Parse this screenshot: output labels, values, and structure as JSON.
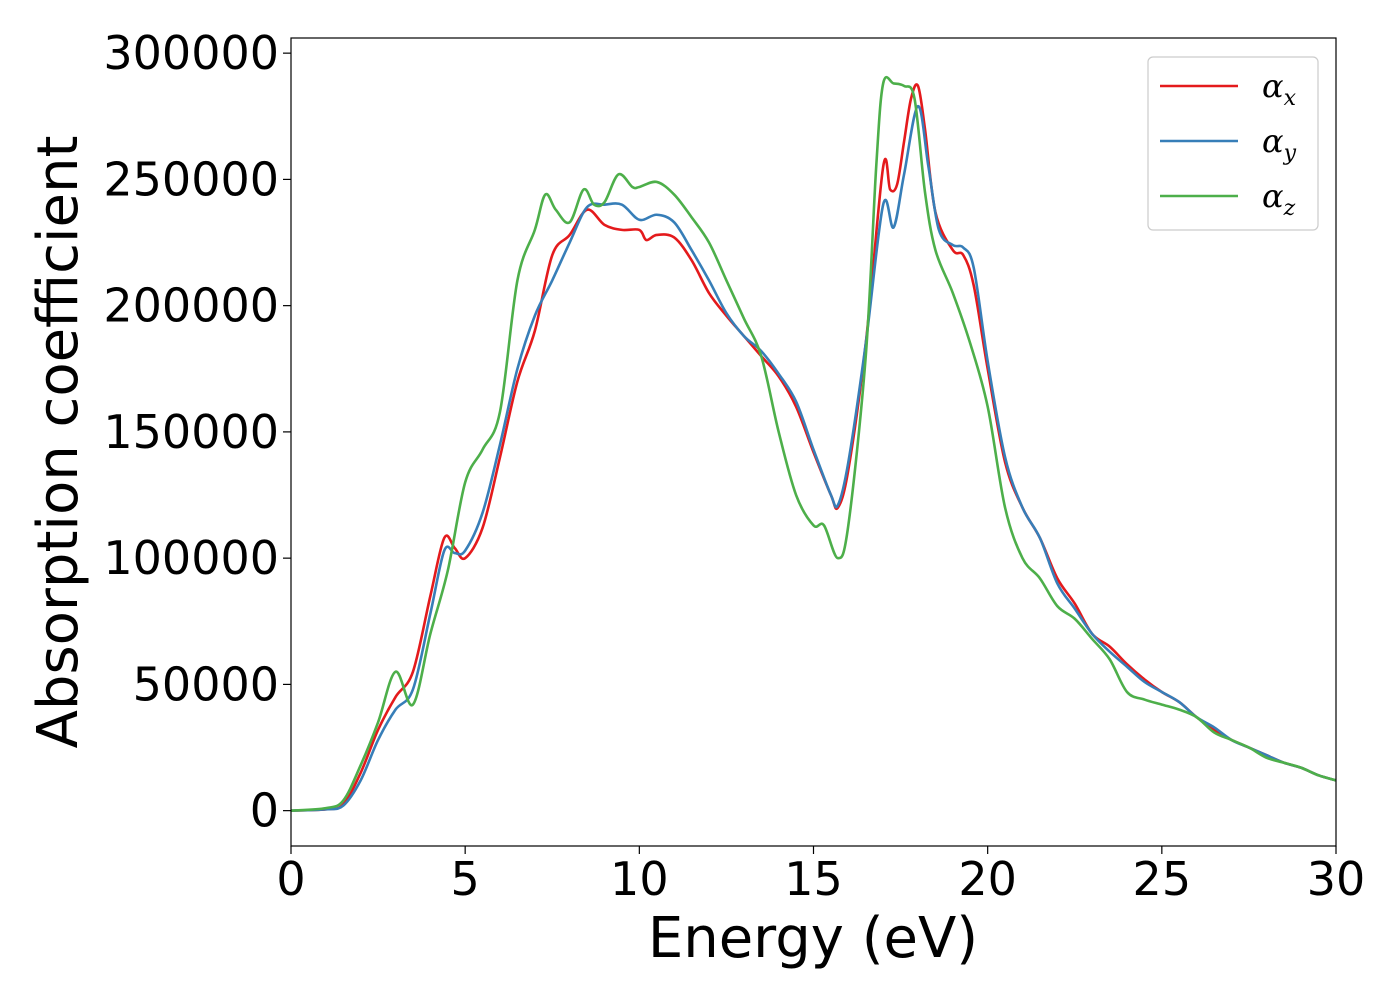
{
  "chart_data": {
    "type": "line",
    "xlabel": "Energy (eV)",
    "ylabel": "Absorption coefficient",
    "xlim": [
      0,
      30
    ],
    "ylim": [
      -14000,
      306000
    ],
    "xticks": [
      0,
      5,
      10,
      15,
      20,
      25,
      30
    ],
    "xtick_labels": [
      "0",
      "5",
      "10",
      "15",
      "20",
      "25",
      "30"
    ],
    "yticks": [
      0,
      50000,
      100000,
      150000,
      200000,
      250000,
      300000
    ],
    "ytick_labels": [
      "0",
      "50000",
      "100000",
      "150000",
      "200000",
      "250000",
      "300000"
    ],
    "grid": false,
    "legend_position": "top-right",
    "series": [
      {
        "name": "α",
        "subscript": "x",
        "color": "#e41a1c",
        "points": [
          [
            0,
            0
          ],
          [
            1,
            500
          ],
          [
            1.5,
            2500
          ],
          [
            2,
            15000
          ],
          [
            2.5,
            32000
          ],
          [
            3,
            45000
          ],
          [
            3.5,
            55000
          ],
          [
            4,
            85000
          ],
          [
            4.4,
            108000
          ],
          [
            4.7,
            104000
          ],
          [
            5,
            100000
          ],
          [
            5.5,
            112000
          ],
          [
            6,
            140000
          ],
          [
            6.5,
            170000
          ],
          [
            7,
            190000
          ],
          [
            7.5,
            220000
          ],
          [
            8,
            228000
          ],
          [
            8.5,
            238000
          ],
          [
            9,
            232000
          ],
          [
            9.5,
            230000
          ],
          [
            10,
            230000
          ],
          [
            10.2,
            226000
          ],
          [
            10.5,
            228000
          ],
          [
            11,
            227000
          ],
          [
            11.5,
            218000
          ],
          [
            12,
            205000
          ],
          [
            12.5,
            196000
          ],
          [
            13,
            188000
          ],
          [
            13.5,
            180000
          ],
          [
            14,
            172000
          ],
          [
            14.5,
            160000
          ],
          [
            15,
            142000
          ],
          [
            15.5,
            125000
          ],
          [
            15.7,
            120000
          ],
          [
            16,
            135000
          ],
          [
            16.5,
            185000
          ],
          [
            17,
            255000
          ],
          [
            17.2,
            246000
          ],
          [
            17.4,
            248000
          ],
          [
            17.6,
            265000
          ],
          [
            17.8,
            282000
          ],
          [
            18,
            287000
          ],
          [
            18.2,
            270000
          ],
          [
            18.5,
            237000
          ],
          [
            19,
            222000
          ],
          [
            19.3,
            220000
          ],
          [
            19.6,
            208000
          ],
          [
            20,
            175000
          ],
          [
            20.5,
            138000
          ],
          [
            21,
            120000
          ],
          [
            21.5,
            108000
          ],
          [
            22,
            92000
          ],
          [
            22.5,
            82000
          ],
          [
            23,
            70000
          ],
          [
            23.5,
            65000
          ],
          [
            24,
            58000
          ],
          [
            24.5,
            52000
          ],
          [
            25,
            47000
          ],
          [
            25.5,
            43000
          ],
          [
            26,
            37000
          ],
          [
            26.5,
            32000
          ],
          [
            27,
            28000
          ],
          [
            27.5,
            25000
          ],
          [
            28,
            22000
          ],
          [
            28.5,
            19000
          ],
          [
            29,
            17000
          ],
          [
            29.5,
            14000
          ],
          [
            30,
            12000
          ]
        ]
      },
      {
        "name": "α",
        "subscript": "y",
        "color": "#377eb8",
        "points": [
          [
            0,
            0
          ],
          [
            1,
            500
          ],
          [
            1.5,
            2000
          ],
          [
            2,
            12000
          ],
          [
            2.5,
            28000
          ],
          [
            3,
            40000
          ],
          [
            3.5,
            48000
          ],
          [
            4,
            78000
          ],
          [
            4.4,
            103000
          ],
          [
            4.7,
            102000
          ],
          [
            5,
            103000
          ],
          [
            5.5,
            118000
          ],
          [
            6,
            145000
          ],
          [
            6.5,
            175000
          ],
          [
            7,
            196000
          ],
          [
            7.5,
            210000
          ],
          [
            8,
            225000
          ],
          [
            8.5,
            239000
          ],
          [
            9,
            240000
          ],
          [
            9.5,
            240000
          ],
          [
            10,
            234000
          ],
          [
            10.5,
            236000
          ],
          [
            11,
            233000
          ],
          [
            11.5,
            222000
          ],
          [
            12,
            210000
          ],
          [
            12.5,
            197000
          ],
          [
            13,
            188000
          ],
          [
            13.5,
            182000
          ],
          [
            14,
            173000
          ],
          [
            14.5,
            162000
          ],
          [
            15,
            143000
          ],
          [
            15.5,
            125000
          ],
          [
            15.7,
            121000
          ],
          [
            16,
            138000
          ],
          [
            16.5,
            185000
          ],
          [
            17,
            240000
          ],
          [
            17.3,
            231000
          ],
          [
            17.6,
            252000
          ],
          [
            18,
            279000
          ],
          [
            18.3,
            255000
          ],
          [
            18.6,
            230000
          ],
          [
            19,
            224000
          ],
          [
            19.3,
            223000
          ],
          [
            19.6,
            215000
          ],
          [
            20,
            178000
          ],
          [
            20.5,
            140000
          ],
          [
            21,
            120000
          ],
          [
            21.5,
            108000
          ],
          [
            22,
            90000
          ],
          [
            22.5,
            80000
          ],
          [
            23,
            70000
          ],
          [
            23.5,
            63000
          ],
          [
            24,
            57000
          ],
          [
            24.5,
            51000
          ],
          [
            25,
            47000
          ],
          [
            25.5,
            43000
          ],
          [
            26,
            37000
          ],
          [
            26.5,
            33000
          ],
          [
            27,
            28000
          ],
          [
            27.5,
            25000
          ],
          [
            28,
            22000
          ],
          [
            28.5,
            19000
          ],
          [
            29,
            17000
          ],
          [
            29.5,
            14000
          ],
          [
            30,
            12000
          ]
        ]
      },
      {
        "name": "α",
        "subscript": "z",
        "color": "#4daf4a",
        "points": [
          [
            0,
            0
          ],
          [
            1,
            1000
          ],
          [
            1.5,
            4000
          ],
          [
            2,
            18000
          ],
          [
            2.5,
            35000
          ],
          [
            3,
            55000
          ],
          [
            3.5,
            42000
          ],
          [
            4,
            70000
          ],
          [
            4.5,
            95000
          ],
          [
            5,
            130000
          ],
          [
            5.5,
            143000
          ],
          [
            6,
            158000
          ],
          [
            6.5,
            210000
          ],
          [
            7,
            230000
          ],
          [
            7.3,
            244000
          ],
          [
            7.6,
            238000
          ],
          [
            8,
            233000
          ],
          [
            8.4,
            246000
          ],
          [
            8.7,
            240000
          ],
          [
            9,
            241000
          ],
          [
            9.4,
            252000
          ],
          [
            9.8,
            247000
          ],
          [
            10,
            247000
          ],
          [
            10.5,
            249000
          ],
          [
            11,
            244000
          ],
          [
            11.5,
            235000
          ],
          [
            12,
            225000
          ],
          [
            12.5,
            210000
          ],
          [
            13,
            195000
          ],
          [
            13.5,
            180000
          ],
          [
            14,
            150000
          ],
          [
            14.5,
            125000
          ],
          [
            15,
            113000
          ],
          [
            15.3,
            113000
          ],
          [
            15.7,
            100000
          ],
          [
            16,
            113000
          ],
          [
            16.5,
            180000
          ],
          [
            16.8,
            255000
          ],
          [
            17,
            288000
          ],
          [
            17.3,
            288000
          ],
          [
            17.6,
            287000
          ],
          [
            17.9,
            282000
          ],
          [
            18.2,
            245000
          ],
          [
            18.5,
            222000
          ],
          [
            19,
            205000
          ],
          [
            19.5,
            185000
          ],
          [
            20,
            160000
          ],
          [
            20.5,
            120000
          ],
          [
            21,
            100000
          ],
          [
            21.5,
            92000
          ],
          [
            22,
            81000
          ],
          [
            22.5,
            76000
          ],
          [
            23,
            68000
          ],
          [
            23.5,
            60000
          ],
          [
            24,
            47000
          ],
          [
            24.5,
            44000
          ],
          [
            25,
            42000
          ],
          [
            25.5,
            40000
          ],
          [
            26,
            37000
          ],
          [
            26.5,
            31000
          ],
          [
            27,
            28000
          ],
          [
            27.5,
            25000
          ],
          [
            28,
            21000
          ],
          [
            28.5,
            19000
          ],
          [
            29,
            17000
          ],
          [
            29.5,
            14000
          ],
          [
            30,
            12000
          ]
        ]
      }
    ]
  }
}
